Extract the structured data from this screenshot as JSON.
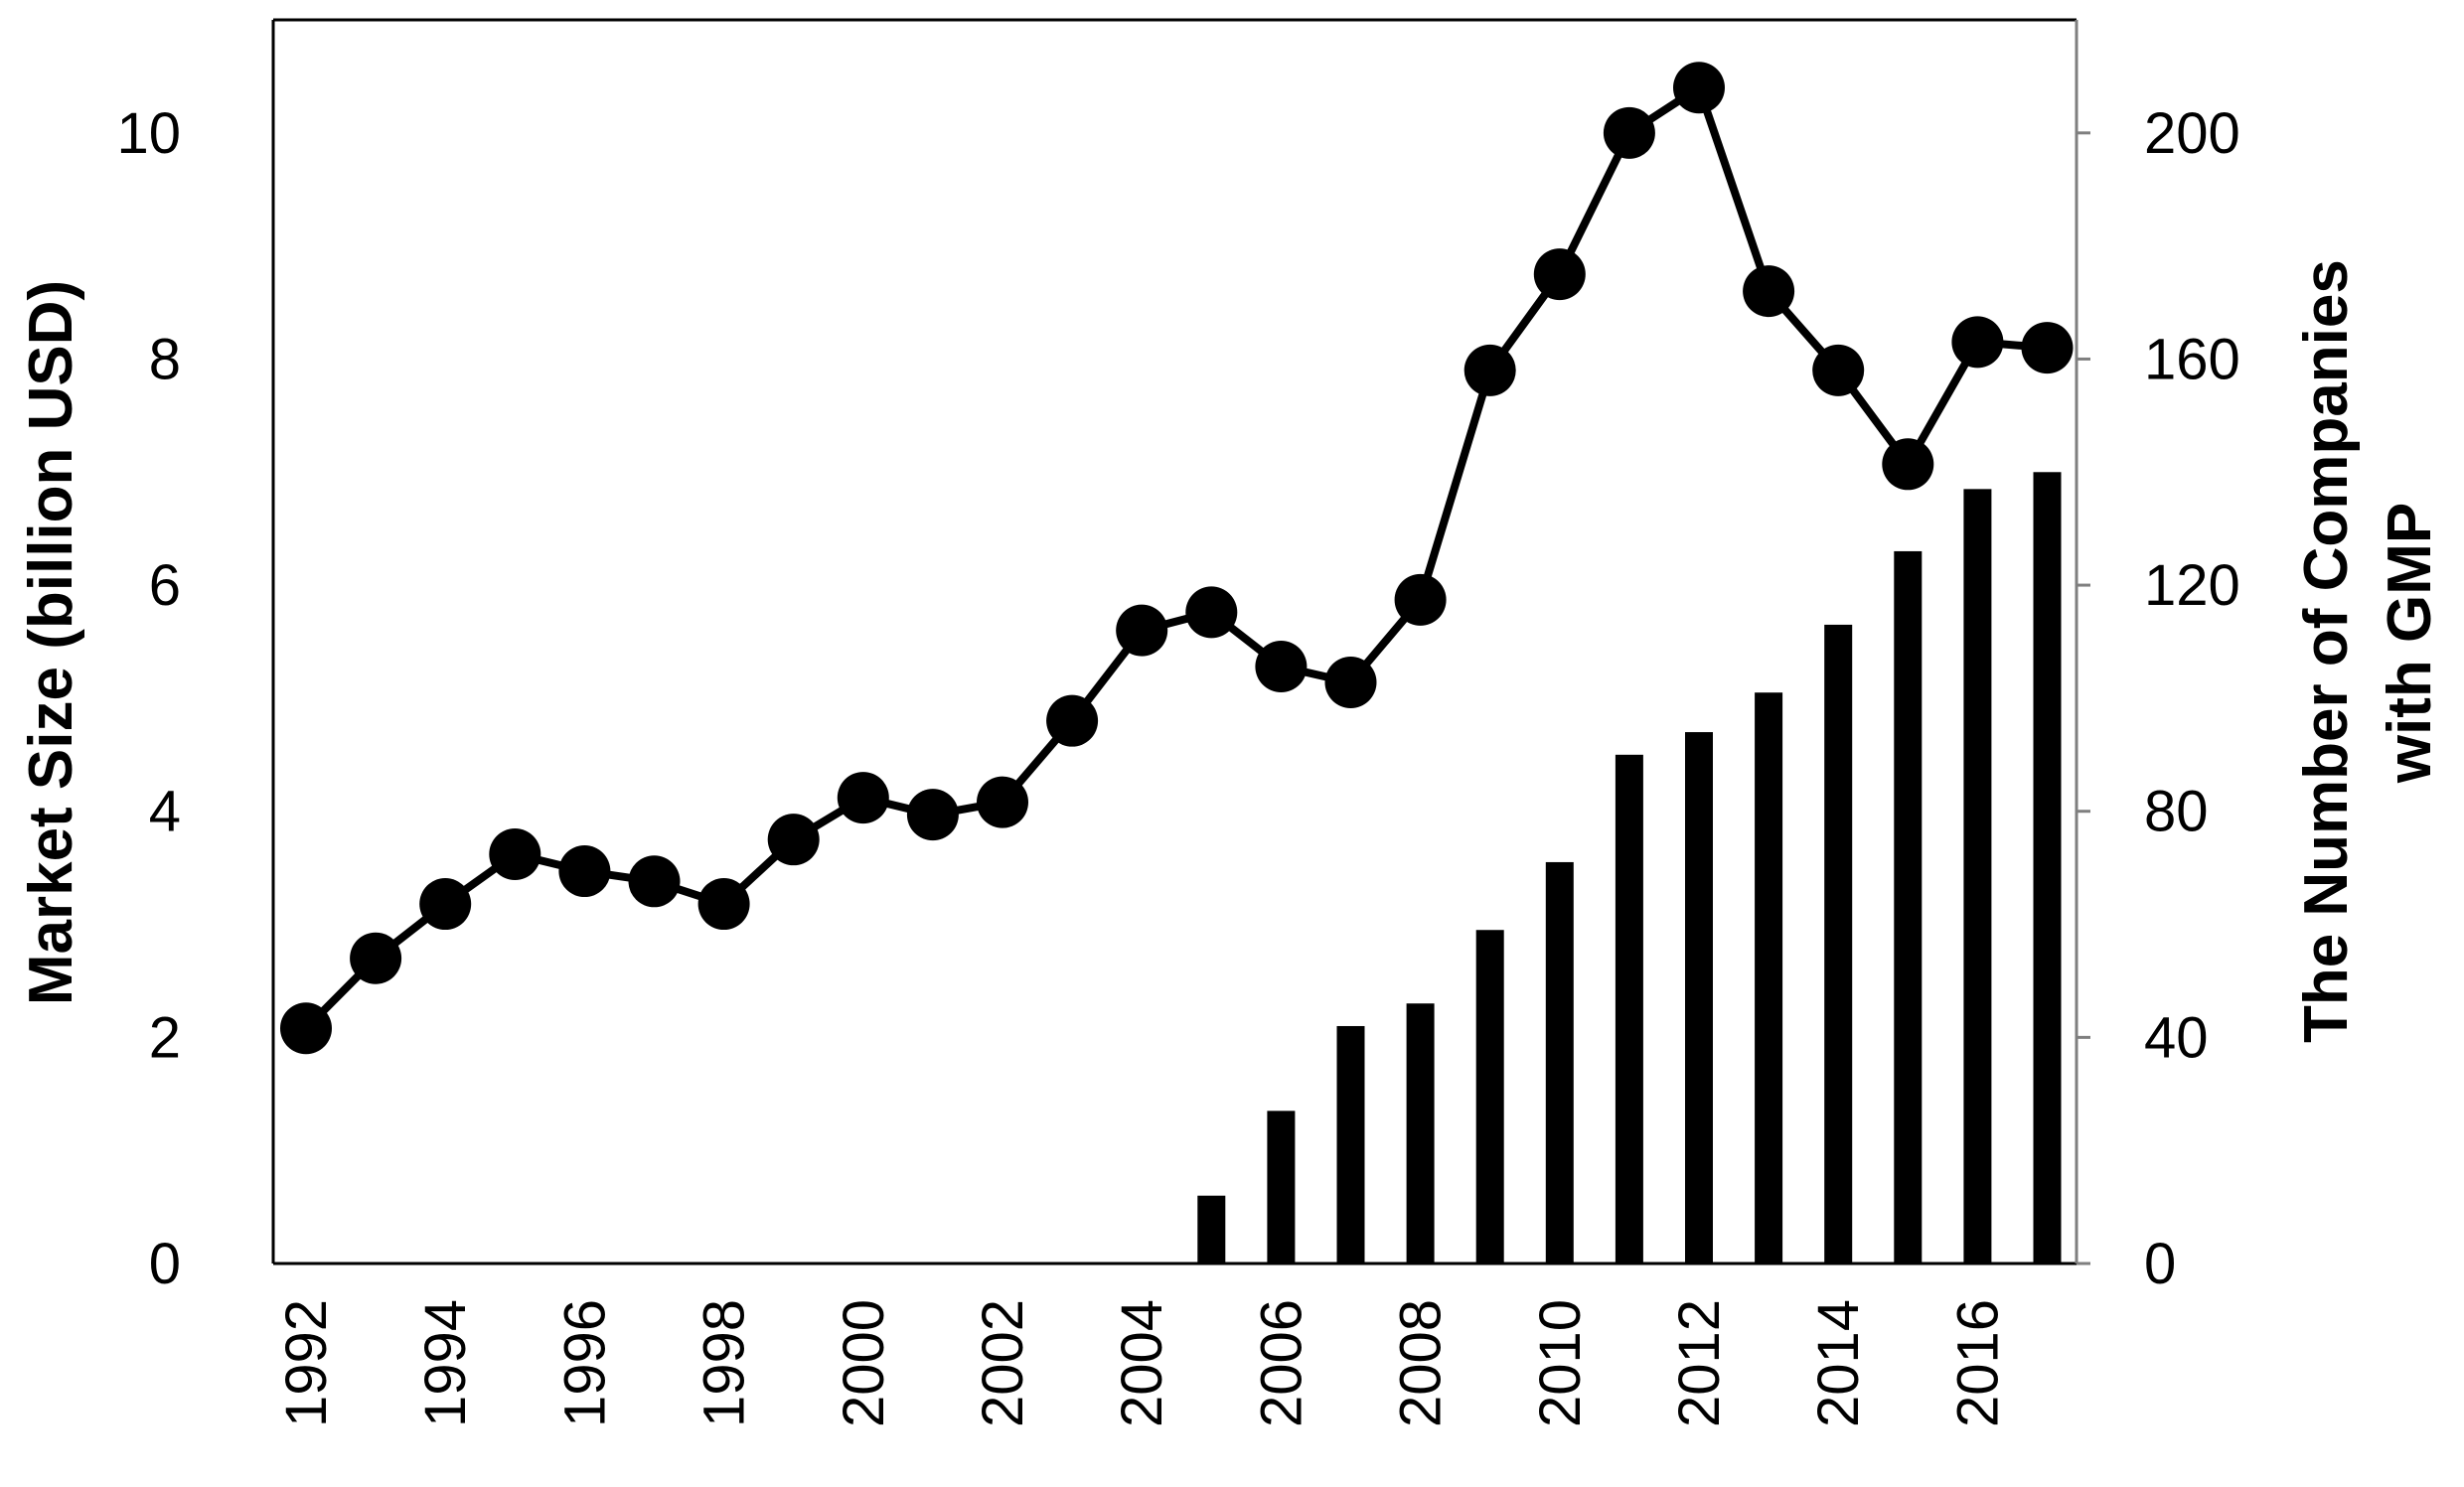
{
  "chart_data": {
    "type": "bar+line",
    "title": "",
    "x": [
      1992,
      1993,
      1994,
      1995,
      1996,
      1997,
      1998,
      1999,
      2000,
      2001,
      2002,
      2003,
      2004,
      2005,
      2006,
      2007,
      2008,
      2009,
      2010,
      2011,
      2012,
      2013,
      2014,
      2015,
      2016,
      2017
    ],
    "xtick_labels": [
      "1992",
      "1994",
      "1996",
      "1998",
      "2000",
      "2002",
      "2004",
      "2006",
      "2008",
      "2010",
      "2012",
      "2014",
      "2016"
    ],
    "series": [
      {
        "name": "Market Size",
        "type": "line",
        "axis": "left",
        "color": "#000000",
        "values": [
          2.08,
          2.7,
          3.18,
          3.62,
          3.47,
          3.38,
          3.18,
          3.75,
          4.12,
          3.97,
          4.08,
          4.8,
          5.6,
          5.76,
          5.28,
          5.14,
          5.87,
          7.9,
          8.75,
          10.0,
          10.4,
          8.6,
          7.9,
          7.07,
          8.15,
          8.1
        ]
      },
      {
        "name": "The Number of Companies with GMP",
        "type": "bar",
        "axis": "right",
        "color": "#000000",
        "values": [
          0,
          0,
          0,
          0,
          0,
          0,
          0,
          0,
          0,
          0,
          0,
          0,
          0,
          12,
          27,
          42,
          46,
          59,
          71,
          90,
          94,
          101,
          113,
          126,
          137,
          140
        ]
      }
    ],
    "ylabel": "Market Size (billion USD)",
    "ylim": [
      0,
      11
    ],
    "yticks": [
      0,
      2,
      4,
      6,
      8,
      10
    ],
    "ylabel_right": [
      "The Number of Companies",
      "with GMP"
    ],
    "ylim_right": [
      0,
      220
    ],
    "yticks_right": [
      0,
      40,
      80,
      120,
      160,
      200
    ],
    "grid": false,
    "legend": "none"
  }
}
